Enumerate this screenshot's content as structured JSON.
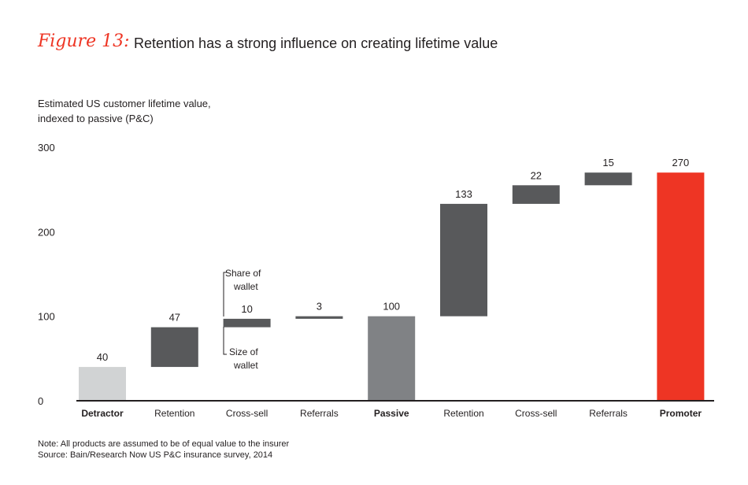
{
  "figure_label": "Figure 13:",
  "title": "Retention has a strong influence on creating lifetime value",
  "note": "Note: All products are assumed to be of equal value to the insurer",
  "source": "Source: Bain/Research Now US P&C insurance survey, 2014",
  "chart_data": {
    "type": "bar",
    "subtype": "waterfall",
    "ylabel": "Estimated US customer lifetime value, indexed to passive (P&C)",
    "ylim": [
      0,
      300
    ],
    "yticks": [
      0,
      100,
      200,
      300
    ],
    "grid": false,
    "categories": [
      "Detractor",
      "Retention",
      "Cross-sell",
      "Referrals",
      "Passive",
      "Retention",
      "Cross-sell",
      "Referrals",
      "Promoter"
    ],
    "bold_categories": [
      "Detractor",
      "Passive",
      "Promoter"
    ],
    "values": [
      40,
      47,
      10,
      3,
      100,
      133,
      22,
      15,
      270
    ],
    "kinds": [
      "total",
      "delta",
      "delta",
      "delta",
      "total",
      "delta",
      "delta",
      "delta",
      "total"
    ],
    "annotations": {
      "upper": "Share of wallet",
      "lower": "Size of wallet"
    },
    "colors": {
      "detractor": "#d1d3d4",
      "delta": "#58595b",
      "passive": "#808285",
      "promoter": "#ee3524"
    }
  }
}
